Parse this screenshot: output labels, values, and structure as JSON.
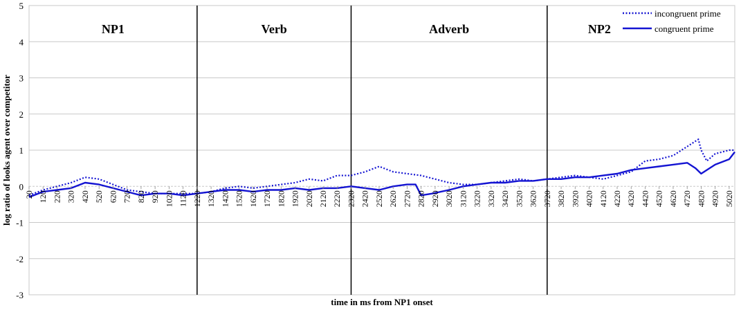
{
  "chart_data": {
    "type": "line",
    "xlabel": "time in ms from NP1 onset",
    "ylabel": "log ratio of looks agent over competitor",
    "ylim": [
      -3,
      5
    ],
    "yticks": [
      -3,
      -2,
      -1,
      0,
      1,
      2,
      3,
      4,
      5
    ],
    "xlim": [
      20,
      5060
    ],
    "xtick_step": 100,
    "xtick_start": 20,
    "xtick_end": 5020,
    "grid": "horizontal",
    "legend_position": "top-right",
    "colors": {
      "series": "#1414d2",
      "grid": "#c8c8c8",
      "divider": "#000000"
    },
    "regions": [
      {
        "label": "NP1",
        "start": 20,
        "end": 1220
      },
      {
        "label": "Verb",
        "start": 1220,
        "end": 2320
      },
      {
        "label": "Adverb",
        "start": 2320,
        "end": 3720
      },
      {
        "label": "NP2",
        "start": 3720,
        "end": 5060
      }
    ],
    "dividers": [
      1220,
      2320,
      3720
    ],
    "series": [
      {
        "name": "incongruent prime",
        "style": "dotted",
        "x": [
          20,
          120,
          220,
          320,
          420,
          520,
          620,
          720,
          820,
          920,
          1020,
          1120,
          1220,
          1320,
          1420,
          1520,
          1620,
          1720,
          1820,
          1920,
          2020,
          2120,
          2220,
          2320,
          2420,
          2520,
          2620,
          2720,
          2820,
          2920,
          3020,
          3120,
          3220,
          3320,
          3420,
          3520,
          3620,
          3720,
          3820,
          3920,
          4020,
          4120,
          4220,
          4320,
          4420,
          4520,
          4620,
          4720,
          4800,
          4820,
          4860,
          4920,
          5020,
          5060
        ],
        "y": [
          -0.25,
          -0.1,
          0.0,
          0.1,
          0.25,
          0.2,
          0.05,
          -0.1,
          -0.15,
          -0.2,
          -0.2,
          -0.2,
          -0.2,
          -0.15,
          -0.05,
          0.0,
          -0.05,
          0.0,
          0.05,
          0.1,
          0.2,
          0.15,
          0.3,
          0.3,
          0.4,
          0.55,
          0.4,
          0.35,
          0.3,
          0.2,
          0.1,
          0.05,
          0.05,
          0.1,
          0.15,
          0.2,
          0.15,
          0.2,
          0.25,
          0.3,
          0.25,
          0.2,
          0.3,
          0.4,
          0.7,
          0.75,
          0.85,
          1.1,
          1.3,
          1.0,
          0.7,
          0.9,
          1.0,
          1.0
        ]
      },
      {
        "name": "congruent prime",
        "style": "solid",
        "x": [
          20,
          120,
          220,
          320,
          420,
          520,
          620,
          720,
          820,
          920,
          1020,
          1120,
          1220,
          1320,
          1420,
          1520,
          1620,
          1720,
          1820,
          1920,
          2020,
          2120,
          2220,
          2320,
          2420,
          2520,
          2620,
          2720,
          2780,
          2820,
          2900,
          3020,
          3120,
          3220,
          3320,
          3420,
          3520,
          3620,
          3720,
          3820,
          3920,
          4020,
          4120,
          4220,
          4320,
          4420,
          4520,
          4620,
          4720,
          4780,
          4820,
          4860,
          4920,
          5020,
          5060
        ],
        "y": [
          -0.3,
          -0.15,
          -0.1,
          -0.05,
          0.1,
          0.05,
          -0.05,
          -0.15,
          -0.25,
          -0.2,
          -0.2,
          -0.25,
          -0.2,
          -0.15,
          -0.1,
          -0.1,
          -0.15,
          -0.1,
          -0.1,
          -0.05,
          -0.1,
          -0.05,
          -0.05,
          0.0,
          -0.05,
          -0.1,
          0.0,
          0.05,
          0.05,
          -0.25,
          -0.2,
          -0.1,
          0.0,
          0.05,
          0.1,
          0.1,
          0.15,
          0.15,
          0.2,
          0.2,
          0.25,
          0.25,
          0.3,
          0.35,
          0.45,
          0.5,
          0.55,
          0.6,
          0.65,
          0.5,
          0.35,
          0.45,
          0.6,
          0.75,
          0.95
        ]
      }
    ]
  }
}
